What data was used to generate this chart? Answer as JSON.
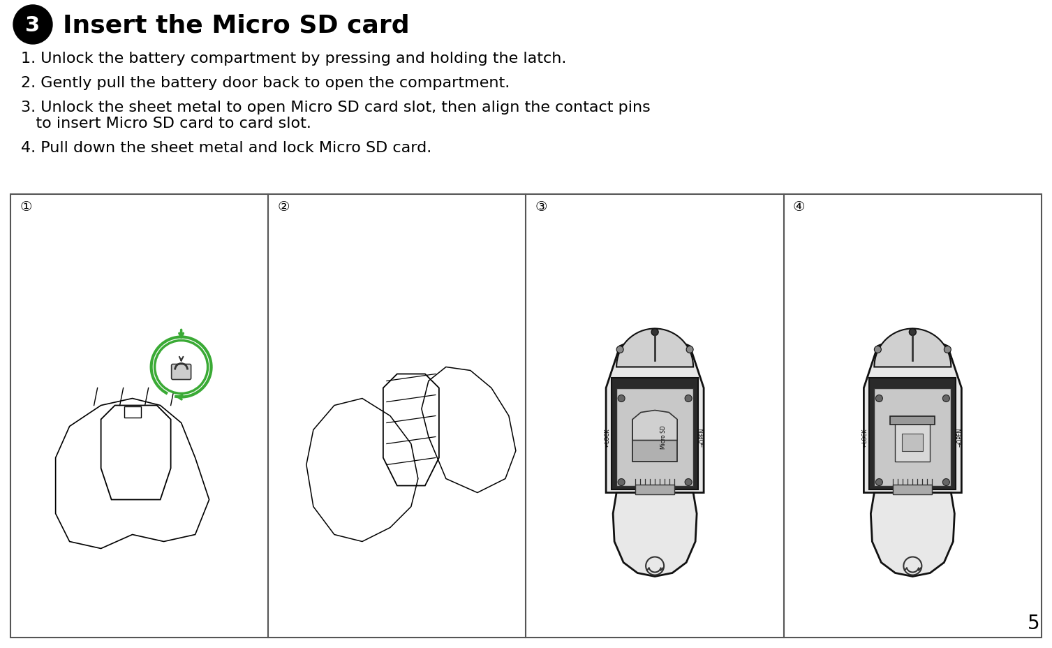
{
  "bg_color": "#ffffff",
  "title_number": "3",
  "title_text": "Insert the Micro SD card",
  "title_fontsize": 26,
  "title_number_fontsize": 22,
  "steps": [
    "1. Unlock the battery compartment by pressing and holding the latch.",
    "2. Gently pull the battery door back to open the compartment.",
    "3. Unlock the sheet metal to open Micro SD card slot, then align the contact pins",
    "   to insert Micro SD card to card slot.",
    "4. Pull down the sheet metal and lock Micro SD card."
  ],
  "step_fontsize": 16,
  "panel_labels": [
    "①",
    "②",
    "③",
    "④"
  ],
  "panel_label_fontsize": 14,
  "page_number": "5",
  "panel_border_color": "#555555",
  "panel_bg": "#ffffff",
  "number_circle_color": "#000000",
  "number_text_color": "#ffffff",
  "green_circle_color": "#3aaa35",
  "lock_open_color": "#000000"
}
